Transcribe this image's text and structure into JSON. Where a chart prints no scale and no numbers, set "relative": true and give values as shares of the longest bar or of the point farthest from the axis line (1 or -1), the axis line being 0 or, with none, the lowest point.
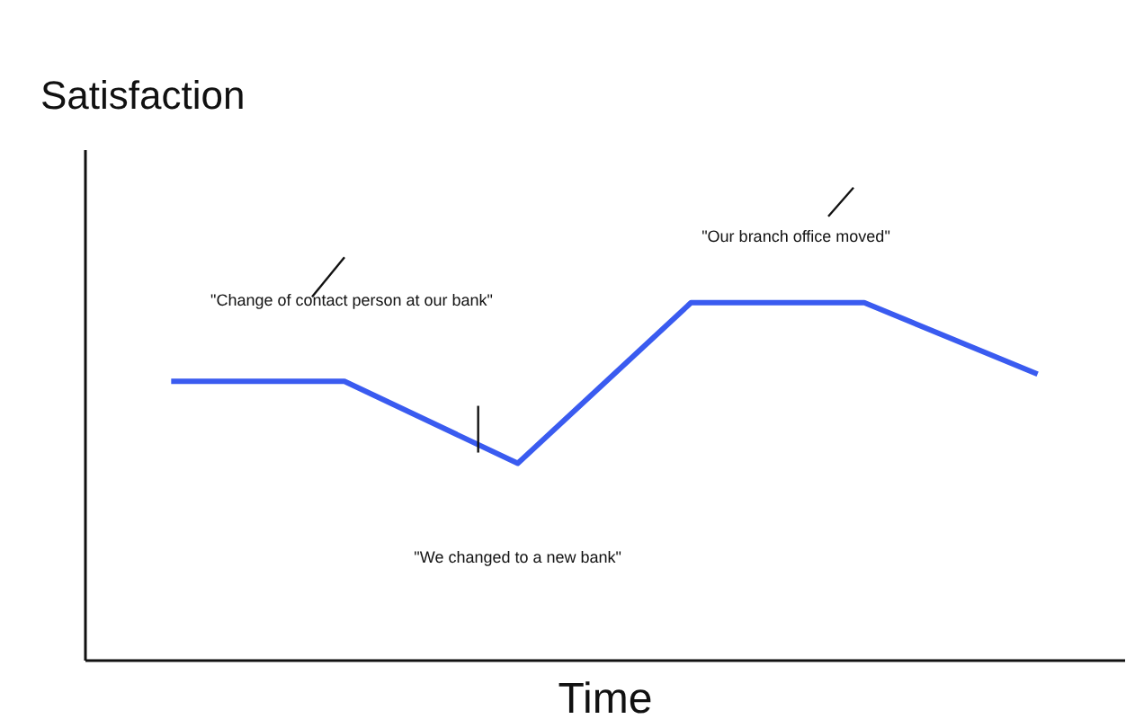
{
  "chart_data": {
    "type": "line",
    "relative": true,
    "xlabel": "Time",
    "ylabel": "Satisfaction",
    "categories": [
      null,
      null,
      null,
      null,
      null,
      null
    ],
    "series": [
      {
        "color": "#3a5bf0",
        "values": [
          0.78,
          0.78,
          0.55,
          1,
          1,
          0.8
        ]
      }
    ],
    "annotations": [
      "\"Change of contact person at our bank\"",
      "\"We changed to a new bank\"",
      "\"Our branch office moved\""
    ]
  }
}
